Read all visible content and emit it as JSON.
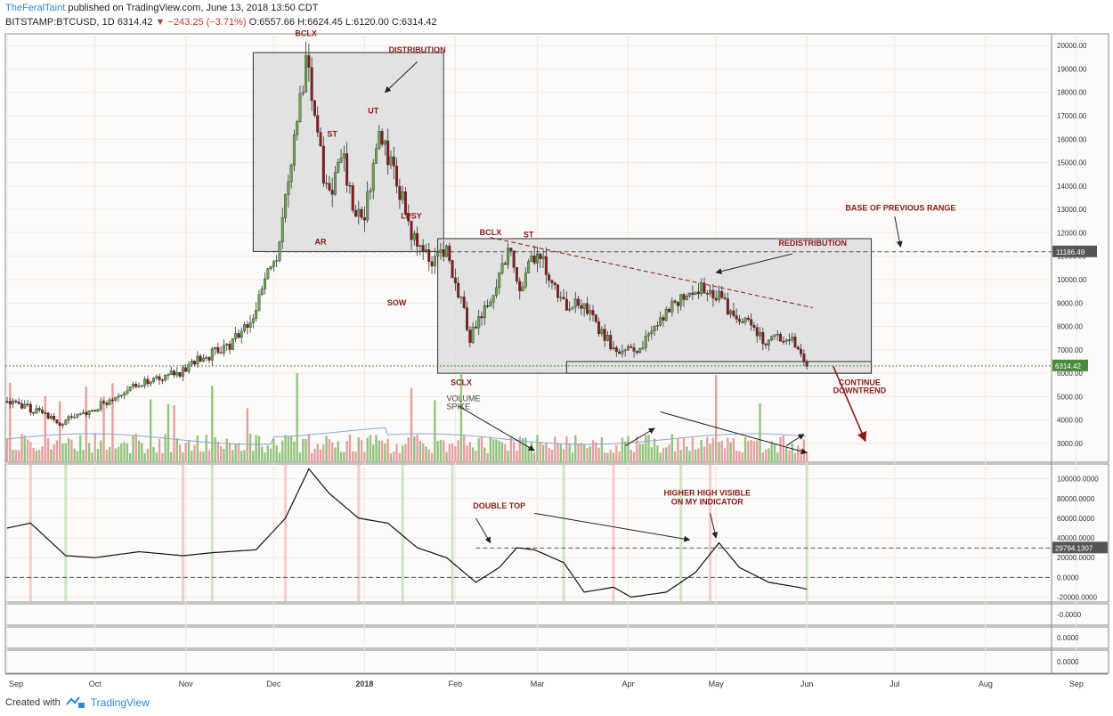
{
  "header": {
    "user": "TheFeralTaint",
    "published": "published on TradingView.com, June 13, 2018 13:50 CDT"
  },
  "symbol_line": {
    "symbol": "BITSTAMP:BTCUSD, 1D",
    "last": "6314.42",
    "change": "−243.25 (−3.71%)",
    "open": "O:6557.66",
    "high": "H:6624.45",
    "low": "L:6120.00",
    "close": "C:6314.42"
  },
  "footer": {
    "created_with": "Created with",
    "brand": "TradingView"
  },
  "colors": {
    "up": "#6aa84f",
    "down": "#8b1a1a",
    "vol_up": "#93c47d",
    "vol_down": "#e6a0a0",
    "annotation": "#8b1a1a",
    "shade": "#dadada",
    "ma": "#8aa6d6"
  },
  "icons": [
    "down-triangle-icon",
    "tradingview-logo-icon"
  ],
  "chart_data": {
    "type": "candlestick",
    "x_tick_labels": [
      "Sep",
      "Oct",
      "Nov",
      "Dec",
      "2018",
      "Feb",
      "Mar",
      "Apr",
      "May",
      "Jun",
      "Jul",
      "Aug",
      "Sep"
    ],
    "price_axis": {
      "ticks": [
        20000,
        19000,
        18000,
        17000,
        16000,
        15000,
        14000,
        13000,
        12000,
        11000,
        10000,
        9000,
        8000,
        7000,
        6000,
        5000,
        4000,
        3000
      ],
      "labels": [
        "20000.00",
        "19000.00",
        "18000.00",
        "17000.00",
        "16000.00",
        "15000.00",
        "14000.00",
        "13000.00",
        "12000.00",
        "11000.00",
        "10000.00",
        "9000.00",
        "8000.00",
        "7000.00",
        "6000.00",
        "5000.00",
        "4000.00",
        "3000.00"
      ],
      "range": [
        2200,
        20500
      ],
      "last_price_label": "6314.42",
      "resistance_label": "11186.49"
    },
    "indicator_axis": {
      "ticks": [
        100000,
        80000,
        60000,
        40000,
        20000,
        0,
        -20000
      ],
      "labels": [
        "100000.0000",
        "80000.0000",
        "60000.0000",
        "40000.0000",
        "20000.0000",
        "0.0000",
        "-20000.0000"
      ],
      "range": [
        -25000,
        115000
      ],
      "level_label": "29794.1307"
    },
    "empty_pane_labels": [
      "-0.0000",
      "0.0000",
      "0.0000"
    ],
    "price_anchors": [
      [
        0,
        4800
      ],
      [
        10,
        4400
      ],
      [
        18,
        3900
      ],
      [
        30,
        4500
      ],
      [
        45,
        5600
      ],
      [
        58,
        6000
      ],
      [
        66,
        6600
      ],
      [
        76,
        7200
      ],
      [
        83,
        8200
      ],
      [
        88,
        10000
      ],
      [
        92,
        11200
      ],
      [
        96,
        14500
      ],
      [
        99,
        17000
      ],
      [
        102,
        19000
      ],
      [
        105,
        17500
      ],
      [
        108,
        14500
      ],
      [
        111,
        13500
      ],
      [
        114,
        15500
      ],
      [
        118,
        13000
      ],
      [
        122,
        12800
      ],
      [
        127,
        16500
      ],
      [
        131,
        14800
      ],
      [
        135,
        13500
      ],
      [
        138,
        11800
      ],
      [
        141,
        11400
      ],
      [
        145,
        10500
      ],
      [
        150,
        11200
      ],
      [
        154,
        9500
      ],
      [
        158,
        7500
      ],
      [
        161,
        8200
      ],
      [
        165,
        9000
      ],
      [
        169,
        10500
      ],
      [
        172,
        11300
      ],
      [
        175,
        9700
      ],
      [
        178,
        10500
      ],
      [
        181,
        11300
      ],
      [
        184,
        10500
      ],
      [
        188,
        9200
      ],
      [
        192,
        8900
      ],
      [
        196,
        9000
      ],
      [
        200,
        8200
      ],
      [
        203,
        7800
      ],
      [
        207,
        7000
      ],
      [
        211,
        6900
      ],
      [
        215,
        7100
      ],
      [
        219,
        7500
      ],
      [
        223,
        8200
      ],
      [
        227,
        8900
      ],
      [
        231,
        9300
      ],
      [
        235,
        9400
      ],
      [
        239,
        9700
      ],
      [
        243,
        9300
      ],
      [
        247,
        8600
      ],
      [
        251,
        8400
      ],
      [
        255,
        7800
      ],
      [
        259,
        7400
      ],
      [
        263,
        7500
      ],
      [
        267,
        7600
      ],
      [
        270,
        7200
      ],
      [
        273,
        6300
      ]
    ],
    "indicator_anchors": [
      [
        0,
        50000
      ],
      [
        8,
        55000
      ],
      [
        20,
        22000
      ],
      [
        30,
        20000
      ],
      [
        45,
        26000
      ],
      [
        60,
        22000
      ],
      [
        70,
        25000
      ],
      [
        85,
        28000
      ],
      [
        95,
        60000
      ],
      [
        103,
        110000
      ],
      [
        110,
        85000
      ],
      [
        120,
        60000
      ],
      [
        130,
        55000
      ],
      [
        140,
        30000
      ],
      [
        150,
        20000
      ],
      [
        160,
        -5000
      ],
      [
        168,
        10000
      ],
      [
        174,
        30000
      ],
      [
        180,
        28000
      ],
      [
        190,
        15000
      ],
      [
        197,
        -15000
      ],
      [
        207,
        -10000
      ],
      [
        213,
        -20000
      ],
      [
        225,
        -15000
      ],
      [
        235,
        5000
      ],
      [
        243,
        35000
      ],
      [
        250,
        10000
      ],
      [
        260,
        -5000
      ],
      [
        270,
        -10000
      ],
      [
        273,
        -12000
      ]
    ],
    "annotations": [
      {
        "text": "BCLX",
        "x": 102,
        "y": 20400
      },
      {
        "text": "DISTRIBUTION",
        "x": 140,
        "y": 19700
      },
      {
        "text": "UT",
        "x": 125,
        "y": 17100
      },
      {
        "text": "ST",
        "x": 111,
        "y": 16100
      },
      {
        "text": "AR",
        "x": 107,
        "y": 11500
      },
      {
        "text": "LPSY",
        "x": 138,
        "y": 12600
      },
      {
        "text": "SOW",
        "x": 133,
        "y": 8900
      },
      {
        "text": "BCLX",
        "x": 165,
        "y": 11900
      },
      {
        "text": "ST",
        "x": 178,
        "y": 11800
      },
      {
        "text": "SCLX",
        "x": 155,
        "y": 5500
      },
      {
        "text": "REDISTRIBUTION",
        "x": 275,
        "y": 11450
      },
      {
        "text": "BASE OF PREVIOUS RANGE",
        "x": 305,
        "y": 12950
      },
      {
        "text": "CONTINUE",
        "x": 291,
        "y": 5500
      },
      {
        "text": "DOWNTREND",
        "x": 291,
        "y": 5150
      }
    ],
    "indicator_annotations": [
      {
        "text": "DOUBLE TOP",
        "x": 168,
        "y": 70000
      },
      {
        "text": "HIGHER HIGH VISIBLE",
        "x": 239,
        "y": 83000
      },
      {
        "text": "ON MY INDICATOR",
        "x": 239,
        "y": 74000
      }
    ],
    "volume_note": [
      "VOLUME",
      "SPIKE"
    ]
  }
}
